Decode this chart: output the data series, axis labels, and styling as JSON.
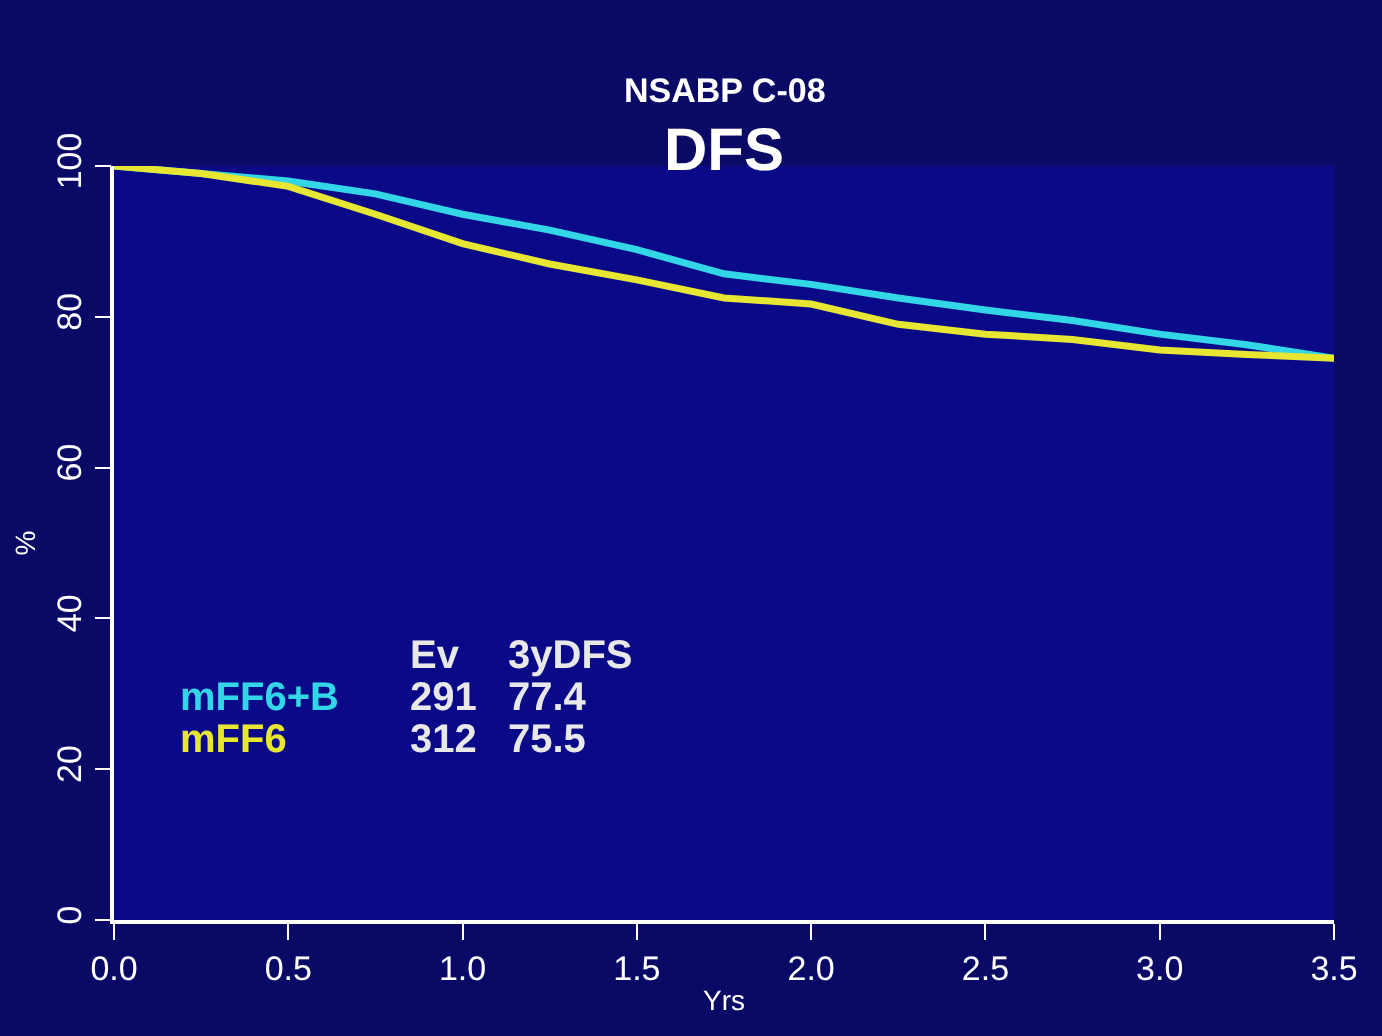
{
  "chart_data": {
    "type": "line",
    "title": "NSABP C-08",
    "subtitle": "DFS",
    "xlabel": "Yrs",
    "ylabel": "%",
    "x": [
      0,
      0.25,
      0.5,
      0.75,
      1.0,
      1.25,
      1.5,
      1.75,
      2.0,
      2.25,
      2.5,
      2.75,
      3.0,
      3.25,
      3.5
    ],
    "series": [
      {
        "name": "mFF6+B",
        "color": "#33d6e6",
        "values": [
          100,
          99,
          98,
          96.3,
          93.6,
          91.5,
          88.9,
          85.7,
          84.3,
          82.5,
          80.9,
          79.5,
          77.7,
          76.3,
          74.5
        ]
      },
      {
        "name": "mFF6",
        "color": "#e6e633",
        "values": [
          100,
          99,
          97.3,
          93.6,
          89.7,
          87,
          84.9,
          82.5,
          81.7,
          79,
          77.7,
          77,
          75.6,
          75,
          74.5
        ]
      }
    ],
    "annotations": [
      "Ev",
      "3yDFS",
      "291",
      "77.4",
      "312",
      "75.5"
    ],
    "xlim": [
      0,
      3.5
    ],
    "xticks": [
      {
        "value": 0,
        "label": "0.0"
      },
      0.5,
      {
        "value": 1,
        "label": "1.0"
      },
      1.5,
      {
        "value": 2,
        "label": "2.0"
      },
      2.5,
      {
        "value": 3,
        "label": "3.0"
      },
      3.5
    ],
    "ylim": [
      0,
      100
    ],
    "yticks": [
      0,
      20,
      40,
      60,
      80,
      100
    ],
    "grid": false,
    "legend": "bottom left",
    "marker": "none",
    "line_style": "solid"
  }
}
